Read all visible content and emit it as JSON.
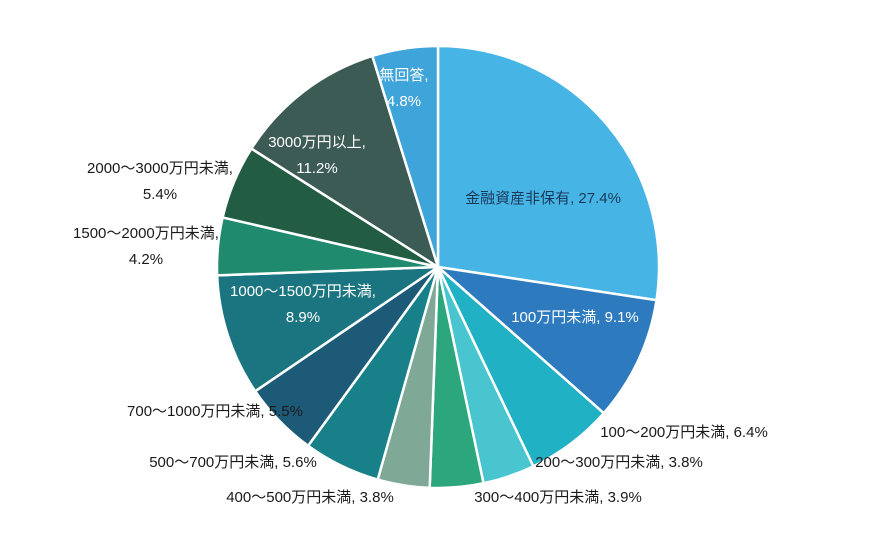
{
  "chart_data": {
    "type": "pie",
    "title": "",
    "unit": "%",
    "background_color": "#ffffff",
    "separator_color": "#ffffff",
    "legend": "none",
    "slices": [
      {
        "label": "金融資産非保有",
        "value": 27.4,
        "color": "#47b4e6",
        "label_lines": [
          "金融資産非保有, 27.4%"
        ],
        "label_placement": "inside",
        "label_color": "#1b3a5a"
      },
      {
        "label": "100万円未満",
        "value": 9.1,
        "color": "#2d7abe",
        "label_lines": [
          "100万円未満, 9.1%"
        ],
        "label_placement": "inside",
        "label_color": "#ffffff"
      },
      {
        "label": "100〜200万円未満",
        "value": 6.4,
        "color": "#20b1c5",
        "label_lines": [
          "100〜200万円未満, 6.4%"
        ],
        "label_placement": "outside",
        "label_color": "#1a1a1a"
      },
      {
        "label": "200〜300万円未満",
        "value": 3.8,
        "color": "#48c5ce",
        "label_lines": [
          "200〜300万円未満, 3.8%"
        ],
        "label_placement": "outside",
        "label_color": "#1a1a1a"
      },
      {
        "label": "300〜400万円未満",
        "value": 3.9,
        "color": "#2ca77d",
        "label_lines": [
          "300〜400万円未満, 3.9%"
        ],
        "label_placement": "outside",
        "label_color": "#1a1a1a"
      },
      {
        "label": "400〜500万円未満",
        "value": 3.8,
        "color": "#7fa897",
        "label_lines": [
          "400〜500万円未満, 3.8%"
        ],
        "label_placement": "outside",
        "label_color": "#1a1a1a"
      },
      {
        "label": "500〜700万円未満",
        "value": 5.6,
        "color": "#178089",
        "label_lines": [
          "500〜700万円未満, 5.6%"
        ],
        "label_placement": "outside",
        "label_color": "#1a1a1a"
      },
      {
        "label": "700〜1000万円未満",
        "value": 5.5,
        "color": "#1d5a78",
        "label_lines": [
          "700〜1000万円未満, 5.5%"
        ],
        "label_placement": "outside",
        "label_color": "#1a1a1a"
      },
      {
        "label": "1000〜1500万円未満",
        "value": 8.9,
        "color": "#1b7580",
        "label_lines": [
          "1000〜1500万円未満,",
          "8.9%"
        ],
        "label_placement": "inside",
        "label_color": "#ffffff"
      },
      {
        "label": "1500〜2000万円未満",
        "value": 4.2,
        "color": "#1f8a6e",
        "label_lines": [
          "1500〜2000万円未満,",
          "4.2%"
        ],
        "label_placement": "outside",
        "label_color": "#1a1a1a"
      },
      {
        "label": "2000〜3000万円未満",
        "value": 5.4,
        "color": "#215c43",
        "label_lines": [
          "2000〜3000万円未満,",
          "5.4%"
        ],
        "label_placement": "outside",
        "label_color": "#1a1a1a"
      },
      {
        "label": "3000万円以上",
        "value": 11.2,
        "color": "#3d5b55",
        "label_lines": [
          "3000万円以上,",
          "11.2%"
        ],
        "label_placement": "inside",
        "label_color": "#ffffff"
      },
      {
        "label": "無回答",
        "value": 4.8,
        "color": "#3fa4d9",
        "label_lines": [
          "無回答,",
          "4.8%"
        ],
        "label_placement": "inside",
        "label_color": "#ffffff"
      }
    ]
  }
}
